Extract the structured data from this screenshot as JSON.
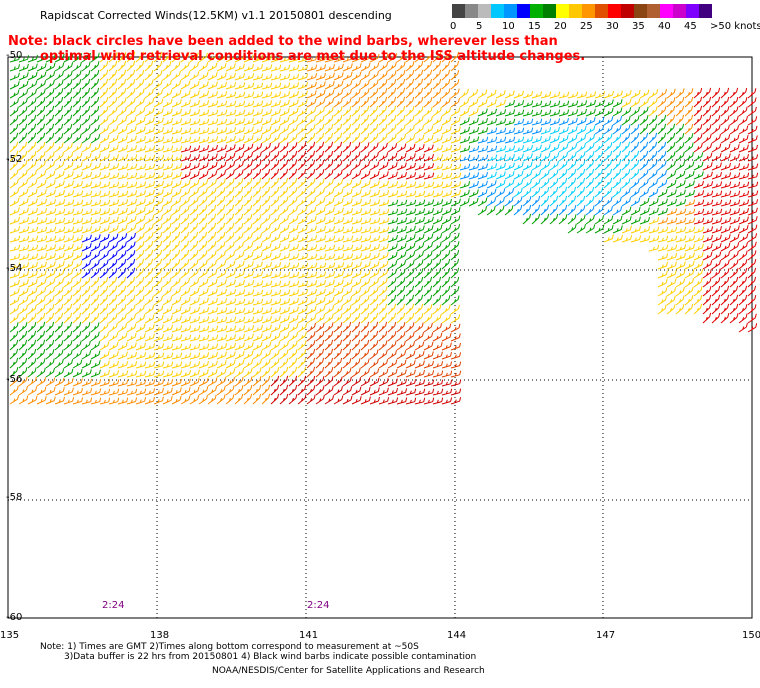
{
  "title": "Rapidscat Corrected Winds(12.5KM) v1.1 20150801 descending",
  "note_line1": "Note: black circles have been added to the wind barbs, wherever less than",
  "note_line2": "optimal wind retrieval conditions are met due to the ISS altitude changes.",
  "legend": {
    "labels": [
      "0",
      "5",
      "10",
      "15",
      "20",
      "25",
      "30",
      "35",
      "40",
      "45",
      ">50 knots"
    ],
    "colors": [
      "#444444",
      "#888888",
      "#bbbbbb",
      "#00c8ff",
      "#0096ff",
      "#0000ff",
      "#00b000",
      "#008000",
      "#ffff00",
      "#ffc800",
      "#ff9600",
      "#e05000",
      "#ff0000",
      "#c00000",
      "#8b4513",
      "#b06030",
      "#ff00ff",
      "#cc00cc",
      "#8000ff",
      "#400080"
    ]
  },
  "map": {
    "lat_labels": [
      "-50",
      "-52",
      "-54",
      "-56",
      "-58",
      "-60"
    ],
    "lon_labels": [
      "135",
      "138",
      "141",
      "144",
      "147",
      "150"
    ],
    "time_labels": [
      "2:24",
      "2:24"
    ]
  },
  "footer": {
    "line1": "Note: 1) Times are GMT 2)Times along bottom correspond to measurement at ~50S",
    "line2": "3)Data buffer is 22 hrs from 20150801 4) Black wind barbs indicate possible contamination",
    "line3": "NOAA/NESDIS/Center for Satellite Applications and Research"
  }
}
